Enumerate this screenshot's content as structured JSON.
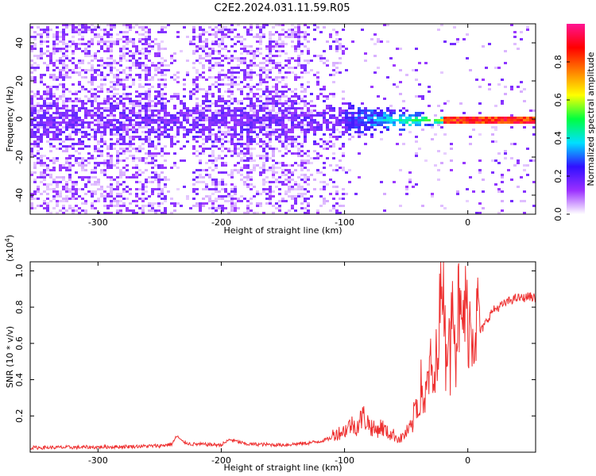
{
  "title": "C2E2.2024.031.11.59.R05",
  "colors": {
    "snr_line": "#ee3030",
    "frame": "#000000",
    "background": "#ffffff"
  },
  "chart_data": [
    {
      "type": "heatmap",
      "name": "spectrogram",
      "xlabel": "Height of straight line (km)",
      "ylabel": "Frequency (Hz)",
      "xlim": [
        -355,
        55
      ],
      "ylim": [
        -50,
        50
      ],
      "xticks": [
        -300,
        -200,
        -100,
        0
      ],
      "xtick_labels": [
        "-300",
        "-200",
        "-100",
        "0"
      ],
      "yticks": [
        -40,
        -20,
        0,
        20,
        40
      ],
      "ytick_labels": [
        "-40",
        "-20",
        "0",
        "20",
        "40"
      ],
      "description_values": {
        "noise_region_x": [
          -355,
          -130
        ],
        "signal_onset_x": -100,
        "carrier_frequency_hz": 0
      },
      "colorbar": {
        "label": "Normalized spectral amplitude",
        "range": [
          0.0,
          1.0
        ],
        "ticks": [
          0.0,
          0.2,
          0.4,
          0.6,
          0.8
        ],
        "tick_labels": [
          "0.0",
          "0.2",
          "0.4",
          "0.6",
          "0.8"
        ],
        "colormap": [
          "#ffffff",
          "#9b30ff",
          "#3010ff",
          "#00e0ff",
          "#00ff40",
          "#ffff00",
          "#ff8000",
          "#ff0000",
          "#ff1493"
        ]
      }
    },
    {
      "type": "line",
      "name": "snr",
      "xlabel": "Height of straight line (km)",
      "ylabel": "SNR (10 * v/v)",
      "y_multiplier_label": "(x10",
      "y_multiplier_exp": "4",
      "y_multiplier_close": ")",
      "xlim": [
        -355,
        55
      ],
      "ylim": [
        0.0,
        1.05
      ],
      "xticks": [
        -300,
        -200,
        -100,
        0
      ],
      "xtick_labels": [
        "-300",
        "-200",
        "-100",
        "0"
      ],
      "yticks": [
        0.2,
        0.4,
        0.6,
        0.8,
        1.0
      ],
      "ytick_labels": [
        "0.2",
        "0.4",
        "0.6",
        "0.8",
        "1.0"
      ],
      "series": [
        {
          "name": "SNR",
          "x": [
            -355,
            -300,
            -250,
            -240,
            -236,
            -232,
            -225,
            -200,
            -193,
            -180,
            -150,
            -130,
            -120,
            -110,
            -100,
            -95,
            -90,
            -85,
            -80,
            -75,
            -70,
            -65,
            -60,
            -55,
            -50,
            -45,
            -42,
            -40,
            -38,
            -35,
            -32,
            -30,
            -27,
            -25,
            -22,
            -20,
            -18,
            -16,
            -14,
            -12,
            -10,
            -8,
            -5,
            -3,
            0,
            5,
            10,
            15,
            20,
            25,
            30,
            35,
            40,
            45,
            50,
            55
          ],
          "y": [
            0.025,
            0.028,
            0.035,
            0.045,
            0.09,
            0.06,
            0.045,
            0.04,
            0.07,
            0.045,
            0.04,
            0.05,
            0.06,
            0.08,
            0.1,
            0.13,
            0.12,
            0.17,
            0.13,
            0.1,
            0.12,
            0.09,
            0.08,
            0.06,
            0.09,
            0.12,
            0.25,
            0.18,
            0.32,
            0.22,
            0.35,
            0.4,
            0.28,
            0.52,
            0.7,
            1.05,
            0.45,
            0.6,
            0.38,
            1.05,
            0.42,
            0.7,
            0.55,
            0.68,
            0.62,
            0.58,
            0.66,
            0.72,
            0.78,
            0.8,
            0.82,
            0.84,
            0.85,
            0.85,
            0.86,
            0.85
          ]
        }
      ]
    }
  ]
}
